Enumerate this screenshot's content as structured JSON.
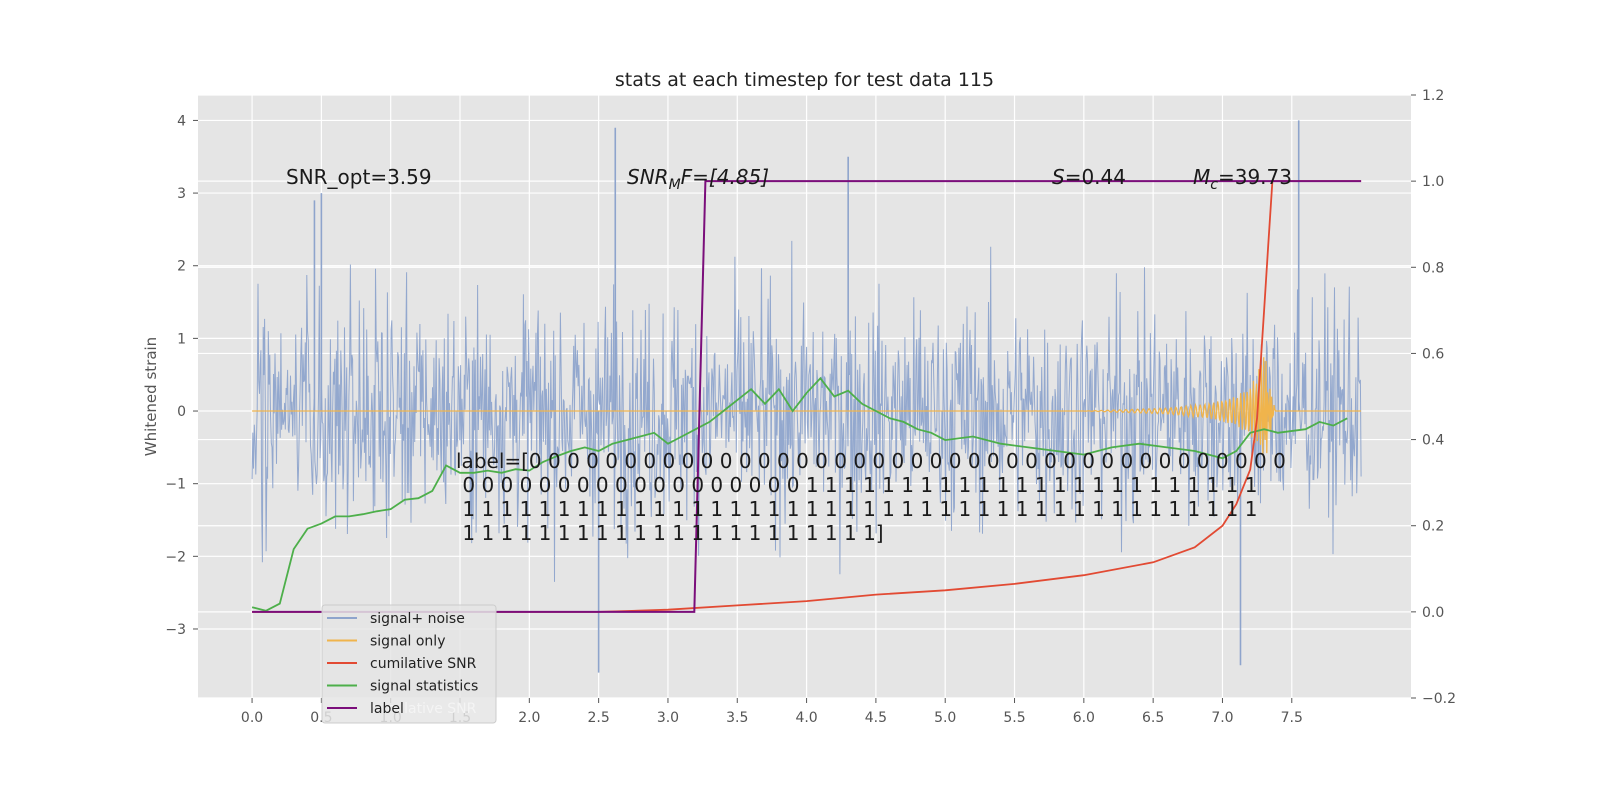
{
  "chart_data": {
    "type": "line",
    "title": "stats at each timestep for test data 115",
    "xlabel": "",
    "ylabel": "Whitened strain",
    "xlim": [
      -0.39,
      8.36
    ],
    "ylim": [
      -3.95,
      4.35
    ],
    "y2lim": [
      -0.2,
      1.2
    ],
    "xticks": [
      "0.0",
      "0.5",
      "1.0",
      "1.5",
      "2.0",
      "2.5",
      "3.0",
      "3.5",
      "4.0",
      "4.5",
      "5.0",
      "5.5",
      "6.0",
      "6.5",
      "7.0",
      "7.5"
    ],
    "yticks": [
      "−3",
      "−2",
      "−1",
      "0",
      "1",
      "2",
      "3",
      "4"
    ],
    "y2ticks": [
      "−0.2",
      "0.0",
      "0.2",
      "0.4",
      "0.6",
      "0.8",
      "1.0",
      "1.2"
    ],
    "grid": true,
    "legend_position": "lower-left",
    "colors": {
      "background": "#e5e5e5",
      "noise": "#8ea4cc",
      "signal": "#f0b44c",
      "cumulative_snr": "#e24a33",
      "statistics": "#4daf4a",
      "label": "#7b0e7b"
    },
    "series": [
      {
        "name": "signal+ noise",
        "axis": "left",
        "note_style": "dense noise trace",
        "x_range": [
          0.0,
          8.0
        ],
        "envelope_y": [
          -3.0,
          3.0
        ],
        "peaks": [
          [
            2.62,
            3.9
          ],
          [
            7.55,
            4.0
          ],
          [
            2.5,
            -3.6
          ],
          [
            7.13,
            -3.5
          ],
          [
            4.3,
            3.5
          ],
          [
            0.45,
            2.9
          ],
          [
            0.5,
            3.0
          ]
        ]
      },
      {
        "name": "signal only",
        "axis": "left",
        "x": [
          0.0,
          6.0,
          6.6,
          6.9,
          7.1,
          7.2,
          7.25,
          7.3,
          7.33,
          7.36,
          7.38
        ],
        "amplitude": [
          0.0,
          0.0,
          0.04,
          0.1,
          0.2,
          0.35,
          0.5,
          0.8,
          0.6,
          0.2,
          0.0
        ]
      },
      {
        "name": "cumilative SNR",
        "axis": "right",
        "x": [
          0.0,
          2.5,
          3.0,
          3.5,
          4.0,
          4.5,
          5.0,
          5.5,
          6.0,
          6.5,
          6.8,
          7.0,
          7.1,
          7.2,
          7.25,
          7.3,
          7.33,
          7.36,
          8.0
        ],
        "y": [
          0.0,
          0.0,
          0.005,
          0.015,
          0.025,
          0.04,
          0.05,
          0.065,
          0.085,
          0.115,
          0.15,
          0.2,
          0.25,
          0.33,
          0.45,
          0.7,
          0.85,
          1.0,
          1.0
        ]
      },
      {
        "name": "signal statistics",
        "axis": "left",
        "x": [
          0.0,
          0.1,
          0.2,
          0.3,
          0.4,
          0.5,
          0.6,
          0.7,
          0.8,
          0.9,
          1.0,
          1.1,
          1.2,
          1.3,
          1.4,
          1.5,
          1.6,
          1.7,
          1.8,
          1.9,
          2.0,
          2.1,
          2.2,
          2.3,
          2.4,
          2.5,
          2.6,
          2.7,
          2.8,
          2.9,
          3.0,
          3.1,
          3.2,
          3.3,
          3.4,
          3.5,
          3.6,
          3.7,
          3.8,
          3.9,
          4.0,
          4.1,
          4.2,
          4.3,
          4.4,
          4.5,
          4.6,
          4.7,
          4.8,
          4.9,
          5.0,
          5.2,
          5.4,
          5.6,
          5.8,
          6.0,
          6.2,
          6.4,
          6.6,
          6.8,
          7.0,
          7.1,
          7.2,
          7.3,
          7.4,
          7.6,
          7.7,
          7.8,
          7.9
        ],
        "y": [
          -2.7,
          -2.75,
          -2.65,
          -1.9,
          -1.62,
          -1.55,
          -1.45,
          -1.45,
          -1.42,
          -1.38,
          -1.35,
          -1.22,
          -1.2,
          -1.1,
          -0.75,
          -0.85,
          -0.85,
          -0.82,
          -0.85,
          -0.8,
          -0.82,
          -0.7,
          -0.62,
          -0.55,
          -0.5,
          -0.55,
          -0.45,
          -0.4,
          -0.35,
          -0.3,
          -0.45,
          -0.35,
          -0.25,
          -0.15,
          0.0,
          0.15,
          0.3,
          0.1,
          0.3,
          0.0,
          0.25,
          0.45,
          0.2,
          0.28,
          0.1,
          0.0,
          -0.1,
          -0.15,
          -0.25,
          -0.3,
          -0.4,
          -0.35,
          -0.45,
          -0.5,
          -0.55,
          -0.6,
          -0.5,
          -0.45,
          -0.5,
          -0.55,
          -0.65,
          -0.55,
          -0.3,
          -0.25,
          -0.3,
          -0.25,
          -0.15,
          -0.2,
          -0.1
        ]
      },
      {
        "name": "label",
        "axis": "right",
        "x": [
          0.0,
          3.19,
          3.27,
          8.0
        ],
        "y": [
          0.0,
          0.0,
          1.0,
          1.0
        ]
      }
    ],
    "annotations": {
      "snr_opt": "SNR_opt=3.59",
      "snr_mf_main": "SNR",
      "snr_mf_sub": "M",
      "snr_mf_rest": "F=[4.85]",
      "s_var": "S",
      "s_value": "=0.44",
      "mc_main": "M",
      "mc_sub": "c",
      "mc_value": "=39.73",
      "label_lines": [
        "label=[0 0 0 0 0 0 0 0 0 0 0 0 0 0 0 0 0 0 0 0 0 0 0 0 0 0 0 0 0 0 0 0 0 0 0 0 0 0 0 0",
        " 0 0 0 0 0 0 0 0 0 0 0 0 0 0 0 0 0 0 1 1 1 1 1 1 1 1 1 1 1 1 1 1 1 1 1 1 1 1 1 1 1 1",
        " 1 1 1 1 1 1 1 1 1 1 1 1 1 1 1 1 1 1 1 1 1 1 1 1 1 1 1 1 1 1 1 1 1 1 1 1 1 1 1 1 1 1",
        " 1 1 1 1 1 1 1 1 1 1 1 1 1 1 1 1 1 1 1 1 1 1]"
      ],
      "legend_ghost_text": "cumilative SNR"
    }
  }
}
